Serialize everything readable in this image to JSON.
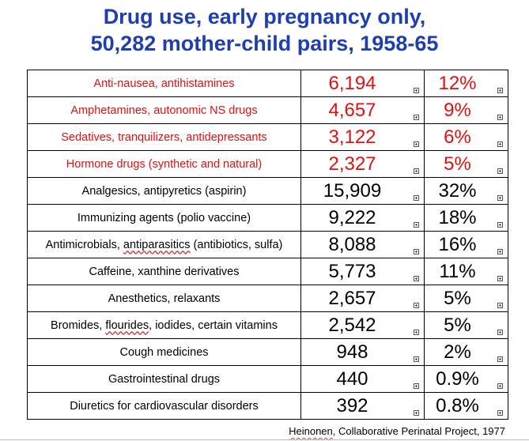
{
  "slide": {
    "title_line1": "Drug use, early pregnancy only,",
    "title_line2": "50,282 mother-child pairs, 1958-65",
    "source_author": "Heinonen",
    "source_rest": ", Collaborative Perinatal Project, 1977"
  },
  "colors": {
    "title": "#1f3fae",
    "highlight": "#e01010",
    "text": "#000000"
  },
  "rows": [
    {
      "pre": "Anti-nausea, antihistamines",
      "squig": "",
      "post": "",
      "count": "6,194",
      "pct": "12%",
      "highlight": true
    },
    {
      "pre": "Amphetamines, autonomic NS drugs",
      "squig": "",
      "post": "",
      "count": "4,657",
      "pct": "9%",
      "highlight": true
    },
    {
      "pre": "Sedatives, tranquilizers, antidepressants",
      "squig": "",
      "post": "",
      "count": "3,122",
      "pct": "6%",
      "highlight": true
    },
    {
      "pre": "Hormone drugs (synthetic and natural)",
      "squig": "",
      "post": "",
      "count": "2,327",
      "pct": "5%",
      "highlight": true
    },
    {
      "pre": "Analgesics, antipyretics (aspirin)",
      "squig": "",
      "post": "",
      "count": "15,909",
      "pct": "32%",
      "highlight": false
    },
    {
      "pre": "Immunizing agents (polio vaccine)",
      "squig": "",
      "post": "",
      "count": "9,222",
      "pct": "18%",
      "highlight": false
    },
    {
      "pre": "Antimicrobials, ",
      "squig": "antiparasitics",
      "post": " (antibiotics, sulfa)",
      "count": "8,088",
      "pct": "16%",
      "highlight": false
    },
    {
      "pre": "Caffeine, xanthine derivatives",
      "squig": "",
      "post": "",
      "count": "5,773",
      "pct": "11%",
      "highlight": false
    },
    {
      "pre": "Anesthetics, relaxants",
      "squig": "",
      "post": "",
      "count": "2,657",
      "pct": "5%",
      "highlight": false
    },
    {
      "pre": "Bromides, ",
      "squig": "flourides",
      "post": ", iodides, certain vitamins",
      "count": "2,542",
      "pct": "5%",
      "highlight": false
    },
    {
      "pre": "Cough medicines",
      "squig": "",
      "post": "",
      "count": "948",
      "pct": "2%",
      "highlight": false
    },
    {
      "pre": "Gastrointestinal drugs",
      "squig": "",
      "post": "",
      "count": "440",
      "pct": "0.9%",
      "highlight": false
    },
    {
      "pre": "Diuretics for cardiovascular disorders",
      "squig": "",
      "post": "",
      "count": "392",
      "pct": "0.8%",
      "highlight": false
    }
  ]
}
